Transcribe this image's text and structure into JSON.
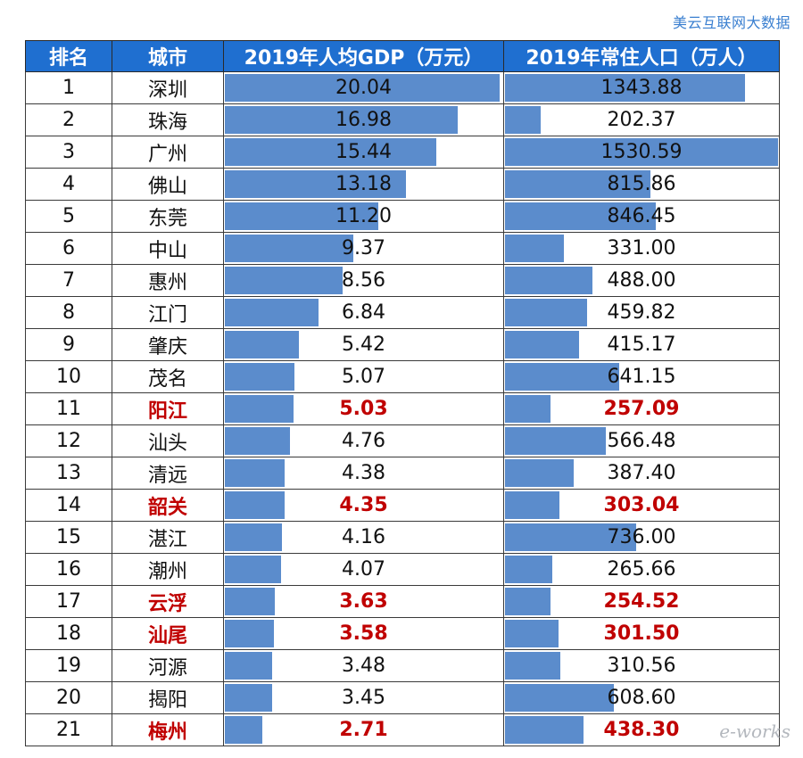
{
  "source_label": "美云互联网大数据",
  "logo_text": "e-works",
  "chart_data": {
    "type": "table",
    "columns": [
      "排名",
      "城市",
      "2019年人均GDP（万元）",
      "2019年常住人口（万人）"
    ],
    "rows": [
      {
        "rank": "1",
        "city": "深圳",
        "gdp": "20.04",
        "pop": "1343.88",
        "highlight": false
      },
      {
        "rank": "2",
        "city": "珠海",
        "gdp": "16.98",
        "pop": "202.37",
        "highlight": false
      },
      {
        "rank": "3",
        "city": "广州",
        "gdp": "15.44",
        "pop": "1530.59",
        "highlight": false
      },
      {
        "rank": "4",
        "city": "佛山",
        "gdp": "13.18",
        "pop": "815.86",
        "highlight": false
      },
      {
        "rank": "5",
        "city": "东莞",
        "gdp": "11.20",
        "pop": "846.45",
        "highlight": false
      },
      {
        "rank": "6",
        "city": "中山",
        "gdp": "9.37",
        "pop": "331.00",
        "highlight": false
      },
      {
        "rank": "7",
        "city": "惠州",
        "gdp": "8.56",
        "pop": "488.00",
        "highlight": false
      },
      {
        "rank": "8",
        "city": "江门",
        "gdp": "6.84",
        "pop": "459.82",
        "highlight": false
      },
      {
        "rank": "9",
        "city": "肇庆",
        "gdp": "5.42",
        "pop": "415.17",
        "highlight": false
      },
      {
        "rank": "10",
        "city": "茂名",
        "gdp": "5.07",
        "pop": "641.15",
        "highlight": false
      },
      {
        "rank": "11",
        "city": "阳江",
        "gdp": "5.03",
        "pop": "257.09",
        "highlight": true
      },
      {
        "rank": "12",
        "city": "汕头",
        "gdp": "4.76",
        "pop": "566.48",
        "highlight": false
      },
      {
        "rank": "13",
        "city": "清远",
        "gdp": "4.38",
        "pop": "387.40",
        "highlight": false
      },
      {
        "rank": "14",
        "city": "韶关",
        "gdp": "4.35",
        "pop": "303.04",
        "highlight": true
      },
      {
        "rank": "15",
        "city": "湛江",
        "gdp": "4.16",
        "pop": "736.00",
        "highlight": false
      },
      {
        "rank": "16",
        "city": "潮州",
        "gdp": "4.07",
        "pop": "265.66",
        "highlight": false
      },
      {
        "rank": "17",
        "city": "云浮",
        "gdp": "3.63",
        "pop": "254.52",
        "highlight": true
      },
      {
        "rank": "18",
        "city": "汕尾",
        "gdp": "3.58",
        "pop": "301.50",
        "highlight": true
      },
      {
        "rank": "19",
        "city": "河源",
        "gdp": "3.48",
        "pop": "310.56",
        "highlight": false
      },
      {
        "rank": "20",
        "city": "揭阳",
        "gdp": "3.45",
        "pop": "608.60",
        "highlight": false
      },
      {
        "rank": "21",
        "city": "梅州",
        "gdp": "2.71",
        "pop": "438.30",
        "highlight": true
      }
    ],
    "bar_color": "#5b8ccc",
    "header_color": "#1f6fd0",
    "highlight_color": "#c00000"
  }
}
